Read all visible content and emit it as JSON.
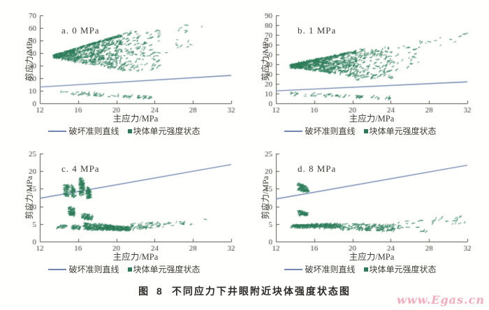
{
  "figure": {
    "caption_prefix": "图 8",
    "caption": "不同应力下井眼附近块体强度状态图",
    "watermark": "www.Egas.cn"
  },
  "colors": {
    "scatter": "#2b7b58",
    "line": "#7286ae",
    "axis": "#5a584c",
    "text": "#403e36",
    "watermark": "#f5acbe"
  },
  "chart_data": [
    {
      "type": "scatter",
      "label": "a. 0 MPa",
      "xlabel": "主应力/MPa",
      "ylabel": "剪应力/MPa",
      "xlim": [
        12,
        32
      ],
      "ylim": [
        0,
        70
      ],
      "xticks": [
        12,
        16,
        20,
        24,
        28,
        32
      ],
      "yticks": [
        0,
        10,
        20,
        30,
        40,
        50,
        60,
        70
      ],
      "legend": [
        {
          "type": "line",
          "label": "破坏准则直线"
        },
        {
          "type": "marker",
          "label": "块体单元强度状态"
        }
      ],
      "line": {
        "x": [
          12,
          32
        ],
        "y": [
          13.0,
          22.2
        ]
      },
      "seed": 7,
      "clusters": [
        {
          "n": 760,
          "x": [
            13.5,
            20.6
          ],
          "yLow": [
            36.3,
            26.5
          ],
          "yHigh": [
            38.6,
            55
          ],
          "topEdge": 0.18
        },
        {
          "n": 140,
          "x": [
            20.4,
            24.6
          ],
          "yLow": [
            25,
            27
          ],
          "yHigh": [
            56,
            60
          ]
        },
        {
          "n": 16,
          "x": [
            24.6,
            29.2
          ],
          "yLow": [
            30,
            45
          ],
          "yHigh": [
            58,
            66
          ]
        },
        {
          "n": 58,
          "x": [
            14.0,
            23.6
          ],
          "yLow": [
            7.2,
            3.6
          ],
          "yHigh": [
            10.0,
            5.6
          ]
        }
      ]
    },
    {
      "type": "scatter",
      "label": "b. 1 MPa",
      "xlabel": "主应力/MPa",
      "ylabel": "剪应力/MPa",
      "xlim": [
        12,
        32
      ],
      "ylim": [
        0,
        90
      ],
      "xticks": [
        12,
        16,
        20,
        24,
        28,
        32
      ],
      "yticks": [
        0,
        10,
        20,
        30,
        40,
        50,
        60,
        70,
        80,
        90
      ],
      "legend": [
        {
          "type": "line",
          "label": "破坏准则直线"
        },
        {
          "type": "marker",
          "label": "块体单元强度状态"
        }
      ],
      "line": {
        "x": [
          12,
          32
        ],
        "y": [
          12.8,
          22.0
        ]
      },
      "seed": 13,
      "clusters": [
        {
          "n": 720,
          "x": [
            13.5,
            20.5
          ],
          "yLow": [
            36.8,
            27
          ],
          "yHigh": [
            39.5,
            54
          ],
          "topEdge": 0.15
        },
        {
          "n": 150,
          "x": [
            20.3,
            24.2
          ],
          "yLow": [
            23,
            26
          ],
          "yHigh": [
            55,
            58
          ]
        },
        {
          "n": 26,
          "x": [
            23.5,
            27.0
          ],
          "yLow": [
            28,
            40
          ],
          "yHigh": [
            55,
            62
          ]
        },
        {
          "n": 14,
          "x": [
            25.0,
            32.0
          ],
          "yLow": [
            55,
            62
          ],
          "yHigh": [
            64,
            72
          ]
        },
        {
          "n": 60,
          "x": [
            13.5,
            24.0
          ],
          "yLow": [
            7.5,
            3.8
          ],
          "yHigh": [
            11.5,
            6.5
          ]
        }
      ]
    },
    {
      "type": "scatter",
      "label": "c. 4 MPa",
      "xlabel": "主应力/MPa",
      "ylabel": "剪应力/MPa",
      "xlim": [
        12,
        32
      ],
      "ylim": [
        0,
        25
      ],
      "xticks": [
        12,
        16,
        20,
        24,
        28,
        32
      ],
      "yticks": [
        0,
        5,
        10,
        15,
        20,
        25
      ],
      "legend": [
        {
          "type": "line",
          "label": "破坏准则直线"
        },
        {
          "type": "marker",
          "label": "块体单元强度状态"
        }
      ],
      "line": {
        "x": [
          12,
          32
        ],
        "y": [
          12.3,
          21.9
        ]
      },
      "seed": 21,
      "clusters": [
        {
          "n": 55,
          "x": [
            14.5,
            15.1
          ],
          "yLow": [
            13.2,
            12.6
          ],
          "yHigh": [
            17.0,
            15.8
          ]
        },
        {
          "n": 45,
          "x": [
            15.25,
            15.7
          ],
          "yLow": [
            12.8,
            12.4
          ],
          "yHigh": [
            16.2,
            15.2
          ]
        },
        {
          "n": 90,
          "x": [
            16.15,
            16.6
          ],
          "yLow": [
            13.3,
            13.0
          ],
          "yHigh": [
            18.6,
            17.2
          ]
        },
        {
          "n": 70,
          "x": [
            16.9,
            17.3
          ],
          "yLow": [
            12.4,
            12.2
          ],
          "yHigh": [
            15.8,
            14.6
          ]
        },
        {
          "n": 70,
          "x": [
            15.05,
            15.6
          ],
          "yLow": [
            7.6,
            7.2
          ],
          "yHigh": [
            10.2,
            9.2
          ]
        },
        {
          "n": 55,
          "x": [
            16.4,
            17.5
          ],
          "yLow": [
            6.6,
            6.2
          ],
          "yHigh": [
            8.4,
            7.2
          ]
        },
        {
          "n": 22,
          "x": [
            13.8,
            14.8
          ],
          "yLow": [
            3.8,
            3.9
          ],
          "yHigh": [
            4.6,
            4.7
          ]
        },
        {
          "n": 28,
          "x": [
            15.4,
            16.2
          ],
          "yLow": [
            3.3,
            3.4
          ],
          "yHigh": [
            4.7,
            4.6
          ]
        },
        {
          "n": 330,
          "x": [
            16.6,
            21.5
          ],
          "yLow": [
            3.4,
            3.1
          ],
          "yHigh": [
            5.4,
            4.1
          ]
        },
        {
          "n": 55,
          "x": [
            21.5,
            24.6
          ],
          "yLow": [
            3.4,
            3.8
          ],
          "yHigh": [
            5.2,
            5.6
          ]
        },
        {
          "n": 16,
          "x": [
            24.8,
            29.3
          ],
          "yLow": [
            4.2,
            5.2
          ],
          "yHigh": [
            5.4,
            6.8
          ]
        }
      ]
    },
    {
      "type": "scatter",
      "label": "d. 8 MPa",
      "xlabel": "主应力/MPa",
      "ylabel": "剪应力/MPa",
      "xlim": [
        12,
        32
      ],
      "ylim": [
        0,
        25
      ],
      "xticks": [
        12,
        16,
        20,
        24,
        28,
        32
      ],
      "yticks": [
        0,
        5,
        10,
        15,
        20,
        25
      ],
      "legend": [
        {
          "type": "line",
          "label": "破坏准则直线"
        },
        {
          "type": "marker",
          "label": "块体单元强度状态"
        }
      ],
      "line": {
        "x": [
          12,
          32
        ],
        "y": [
          12.1,
          21.7
        ]
      },
      "seed": 29,
      "clusters": [
        {
          "n": 85,
          "x": [
            14.3,
            15.4
          ],
          "yLow": [
            14.6,
            14.0
          ],
          "yHigh": [
            16.6,
            15.6
          ]
        },
        {
          "n": 65,
          "x": [
            14.35,
            15.3
          ],
          "yLow": [
            7.6,
            7.3
          ],
          "yHigh": [
            8.9,
            8.2
          ]
        },
        {
          "n": 260,
          "x": [
            13.6,
            18.6
          ],
          "yLow": [
            4.0,
            3.8
          ],
          "yHigh": [
            4.7,
            5.3
          ]
        },
        {
          "n": 150,
          "x": [
            18.6,
            24.4
          ],
          "yLow": [
            3.4,
            2.9
          ],
          "yHigh": [
            5.2,
            4.8
          ]
        },
        {
          "n": 34,
          "x": [
            24.4,
            32.0
          ],
          "yLow": [
            3.4,
            5.0
          ],
          "yHigh": [
            5.6,
            7.5
          ]
        },
        {
          "n": 4,
          "x": [
            27.0,
            28.2
          ],
          "yLow": [
            2.8,
            2.9
          ],
          "yHigh": [
            3.3,
            3.4
          ]
        }
      ]
    }
  ]
}
